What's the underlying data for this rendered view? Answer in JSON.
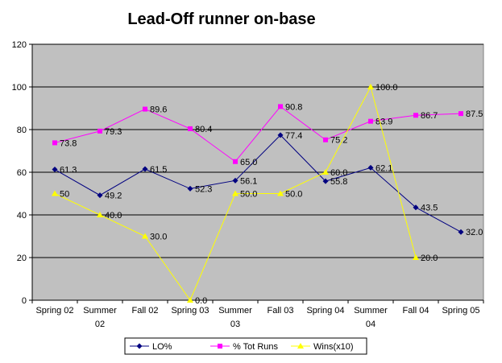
{
  "chart_data": {
    "type": "line",
    "title": "Lead-Off runner on-base",
    "xlabel": "",
    "ylabel": "",
    "ylim": [
      0,
      120
    ],
    "yticks": [
      0,
      20,
      40,
      60,
      80,
      100,
      120
    ],
    "grid": true,
    "legend_position": "bottom",
    "plot_background": "#c0c0c0",
    "categories": [
      [
        "Spring 02"
      ],
      [
        "Summer",
        "02"
      ],
      [
        "Fall 02"
      ],
      [
        "Spring 03"
      ],
      [
        "Summer",
        "03"
      ],
      [
        "Fall 03"
      ],
      [
        "Spring 04"
      ],
      [
        "Summer",
        "04"
      ],
      [
        "Fall 04"
      ],
      [
        "Spring 05"
      ]
    ],
    "series": [
      {
        "name": "LO%",
        "color": "#000080",
        "marker": "diamond",
        "values": [
          61.3,
          49.2,
          61.5,
          52.3,
          56.1,
          77.4,
          55.8,
          62.1,
          43.5,
          32.0
        ],
        "labels": [
          "61.3",
          "49.2",
          "61.5",
          "52.3",
          "56.1",
          "77.4",
          "55.8",
          "62.1",
          "43.5",
          "32.0"
        ]
      },
      {
        "name": "% Tot Runs",
        "color": "#ff00ff",
        "marker": "square",
        "values": [
          73.8,
          79.3,
          89.6,
          80.4,
          65.0,
          90.8,
          75.2,
          83.9,
          86.7,
          87.5
        ],
        "labels": [
          "73.8",
          "79.3",
          "89.6",
          "80.4",
          "65.0",
          "90.8",
          "75.2",
          "83.9",
          "86.7",
          "87.5"
        ]
      },
      {
        "name": "Wins(x10)",
        "color": "#ffff00",
        "marker": "triangle",
        "values": [
          50,
          40.0,
          30.0,
          0.0,
          50.0,
          50.0,
          60.0,
          100.0,
          20.0,
          null
        ],
        "labels": [
          "50",
          "40.0",
          "30.0",
          "0.0",
          "50.0",
          "50.0",
          "60.0",
          "100.0",
          "20.0",
          null
        ]
      }
    ]
  }
}
